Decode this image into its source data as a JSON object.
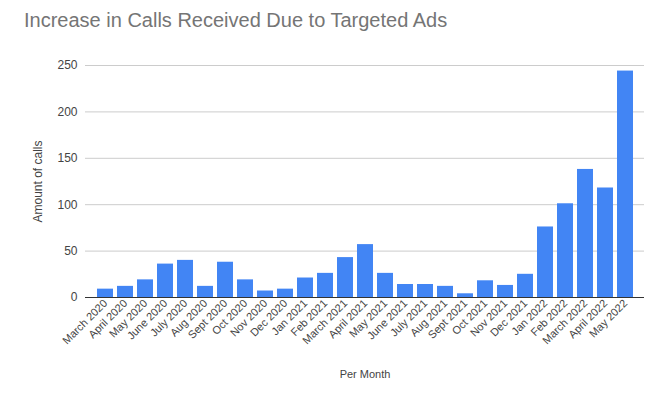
{
  "chart_data": {
    "type": "bar",
    "title": "Increase in Calls Received Due to Targeted Ads",
    "x_label": "Per Month",
    "y_label": "Amount of calls",
    "categories": [
      "March 2020",
      "April 2020",
      "May 2020",
      "June 2020",
      "July 2020",
      "Aug 2020",
      "Sept 2020",
      "Oct 2020",
      "Nov 2020",
      "Dec 2020",
      "Jan 2021",
      "Feb 2021",
      "March 2021",
      "April 2021",
      "May 2021",
      "June 2021",
      "July 2021",
      "Aug 2021",
      "Sept 2021",
      "Oct 2021",
      "Nov 2021",
      "Dec 2021",
      "Jan 2022",
      "Feb 2022",
      "March 2022",
      "April 2022",
      "May 2022"
    ],
    "values": [
      9,
      12,
      19,
      36,
      40,
      12,
      38,
      19,
      7,
      9,
      21,
      26,
      43,
      57,
      26,
      14,
      14,
      12,
      4,
      18,
      13,
      25,
      76,
      101,
      138,
      118,
      244
    ],
    "color": "#4285f4",
    "ylim": [
      0,
      250
    ],
    "yticks": [
      0,
      50,
      100,
      150,
      200,
      250
    ],
    "grid": true
  }
}
